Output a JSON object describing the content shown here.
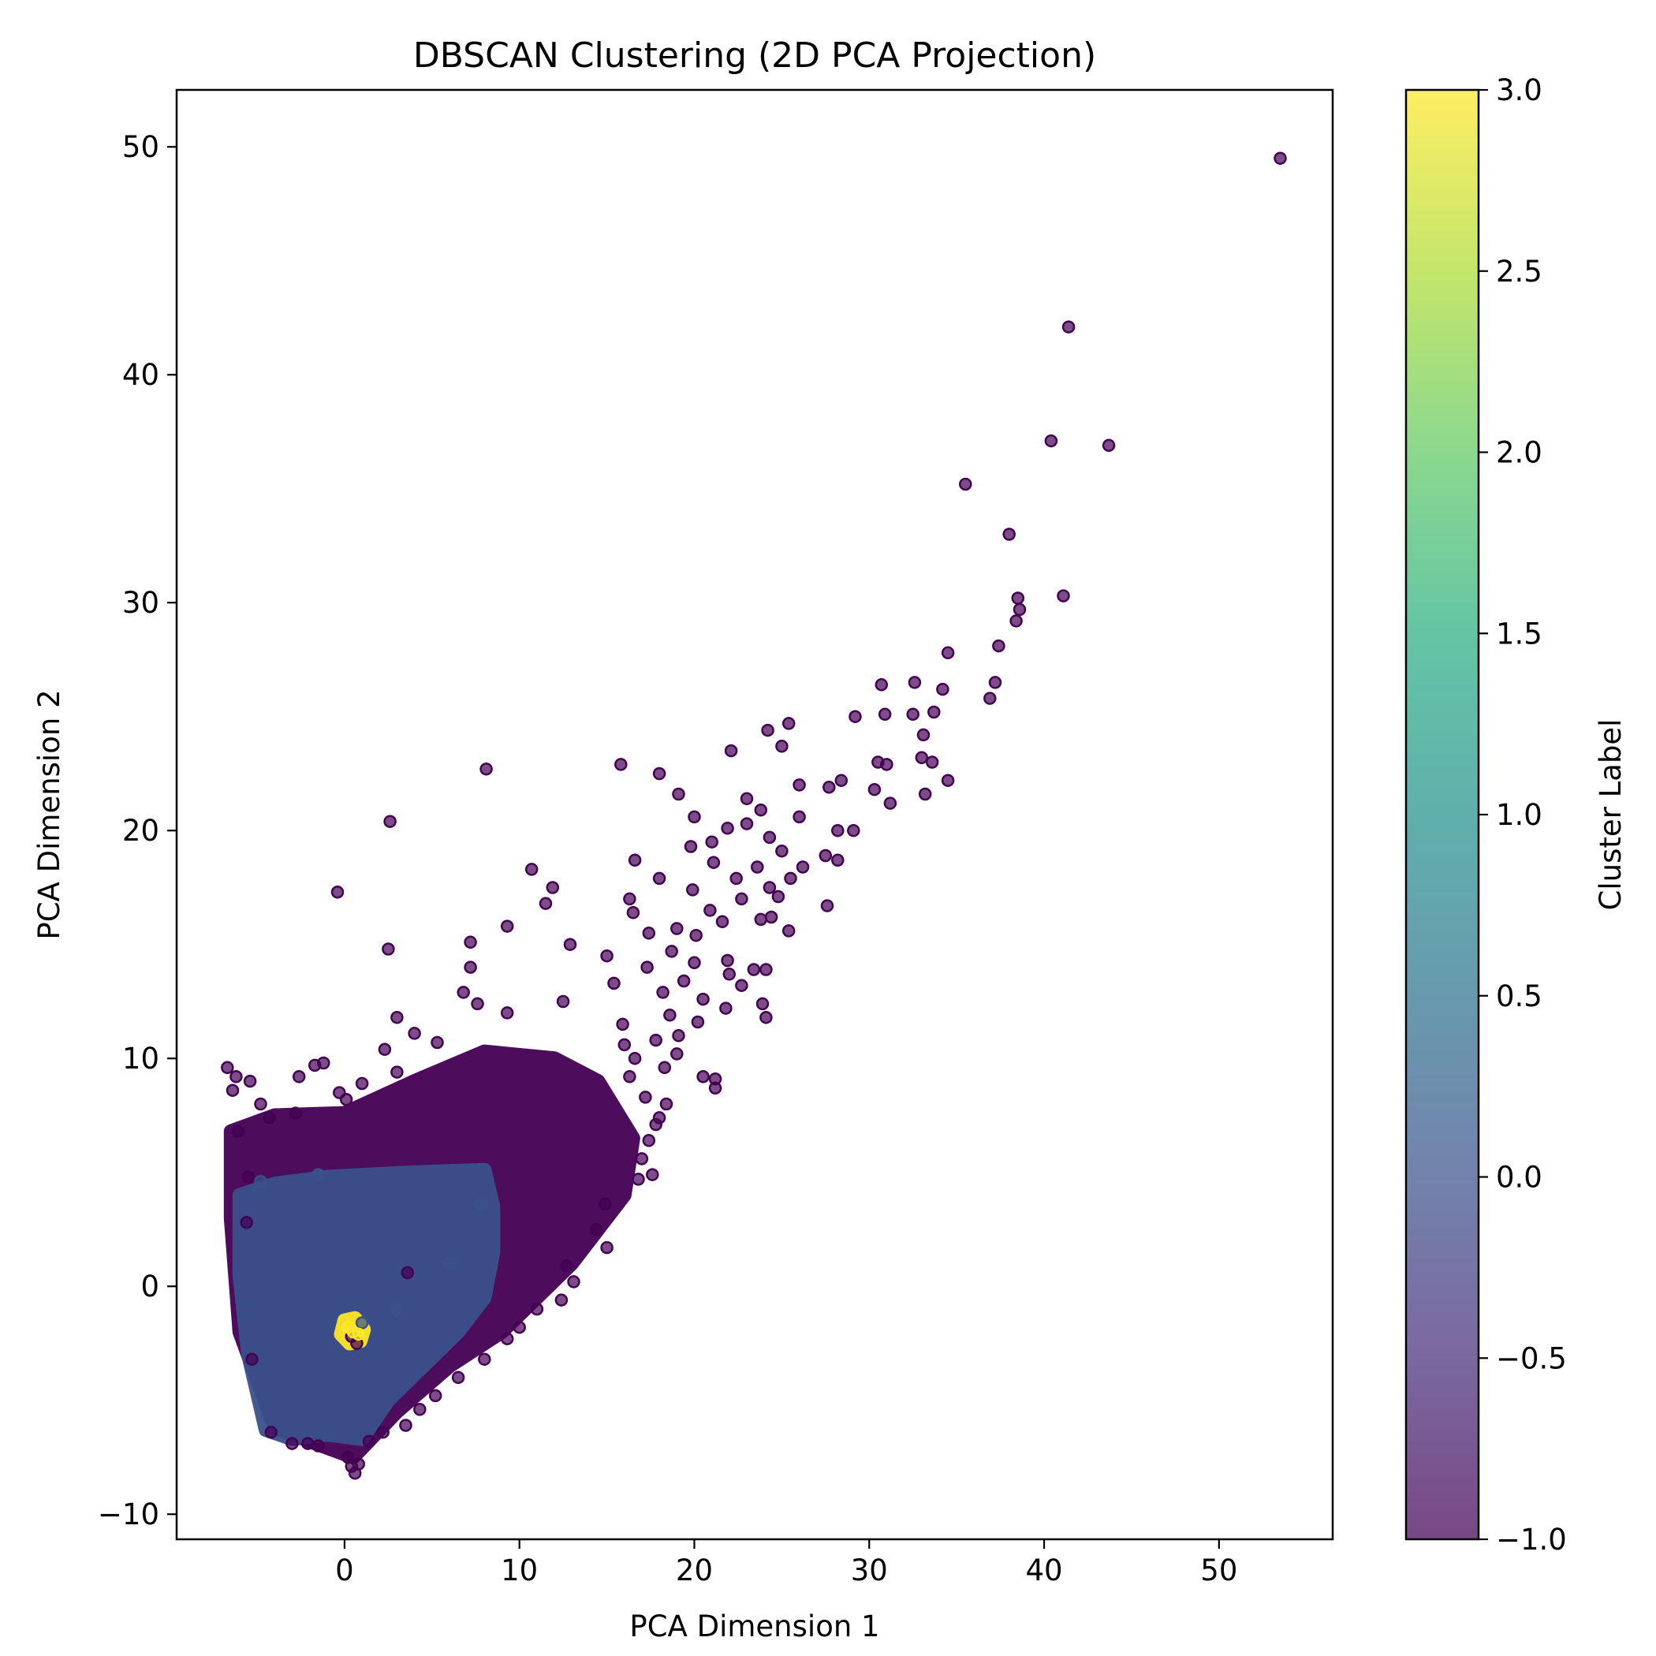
{
  "chart_data": {
    "type": "scatter",
    "title": "DBSCAN Clustering (2D PCA Projection)",
    "xlabel": "PCA Dimension 1",
    "ylabel": "PCA Dimension 2",
    "xlim": [
      -9.6,
      56.5
    ],
    "ylim": [
      -11.1,
      52.5
    ],
    "xticks": [
      0,
      10,
      20,
      30,
      40,
      50
    ],
    "yticks": [
      -10,
      0,
      10,
      20,
      30,
      40,
      50
    ],
    "grid": false,
    "colormap": "viridis",
    "marker_alpha": 0.7,
    "colors": {
      "noise": "#440154",
      "cluster_0": "#3b518b",
      "cluster_3": "#fde725"
    },
    "colorbar": {
      "label": "Cluster Label",
      "range": [
        -1.0,
        3.0
      ],
      "ticks": [
        "-1.0",
        "-0.5",
        "0.0",
        "0.5",
        "1.0",
        "1.5",
        "2.0",
        "2.5",
        "3.0"
      ],
      "tick_values": [
        -1.0,
        -0.5,
        0.0,
        0.5,
        1.0,
        1.5,
        2.0,
        2.5,
        3.0
      ]
    },
    "dense_regions": [
      {
        "name": "noise (-1) core",
        "label": -1,
        "polygon": [
          [
            -6.5,
            6.8
          ],
          [
            -4,
            7.5
          ],
          [
            0,
            7.6
          ],
          [
            4,
            9
          ],
          [
            8,
            10.3
          ],
          [
            12,
            10
          ],
          [
            14.5,
            9
          ],
          [
            16.5,
            6.5
          ],
          [
            16,
            4
          ],
          [
            13,
            1
          ],
          [
            9,
            -2
          ],
          [
            6,
            -3.5
          ],
          [
            3,
            -5.5
          ],
          [
            0.5,
            -7.5
          ],
          [
            -2,
            -6.8
          ],
          [
            -4,
            -6.2
          ],
          [
            -6,
            -2
          ],
          [
            -6.5,
            3
          ]
        ]
      },
      {
        "name": "cluster 0 core",
        "label": 0,
        "polygon": [
          [
            -6,
            4
          ],
          [
            -4,
            4.5
          ],
          [
            -1,
            4.8
          ],
          [
            4,
            5
          ],
          [
            8,
            5.1
          ],
          [
            8.5,
            3.5
          ],
          [
            8.5,
            1.5
          ],
          [
            8,
            -0.5
          ],
          [
            6.5,
            -2
          ],
          [
            4.5,
            -3.5
          ],
          [
            2.5,
            -5
          ],
          [
            1,
            -6.7
          ],
          [
            -1,
            -6.5
          ],
          [
            -3,
            -6.7
          ],
          [
            -4.5,
            -6.3
          ],
          [
            -5.5,
            -3
          ],
          [
            -6,
            0.5
          ]
        ]
      },
      {
        "name": "cluster 3 core",
        "label": 3,
        "polygon": [
          [
            0,
            -1.5
          ],
          [
            0.6,
            -1.4
          ],
          [
            1.1,
            -1.9
          ],
          [
            0.9,
            -2.4
          ],
          [
            0.3,
            -2.5
          ],
          [
            -0.2,
            -2.1
          ]
        ]
      }
    ],
    "points": [
      {
        "x": 53.5,
        "y": 49.5,
        "label": -1
      },
      {
        "x": 41.4,
        "y": 42.1,
        "label": -1
      },
      {
        "x": 40.4,
        "y": 37.1,
        "label": -1
      },
      {
        "x": 43.7,
        "y": 36.9,
        "label": -1
      },
      {
        "x": 35.5,
        "y": 35.2,
        "label": -1
      },
      {
        "x": 38.0,
        "y": 33.0,
        "label": -1
      },
      {
        "x": 41.1,
        "y": 30.3,
        "label": -1
      },
      {
        "x": 38.5,
        "y": 30.2,
        "label": -1
      },
      {
        "x": 38.6,
        "y": 29.7,
        "label": -1
      },
      {
        "x": 38.4,
        "y": 29.2,
        "label": -1
      },
      {
        "x": 37.4,
        "y": 28.1,
        "label": -1
      },
      {
        "x": 34.5,
        "y": 27.8,
        "label": -1
      },
      {
        "x": 30.7,
        "y": 26.4,
        "label": -1
      },
      {
        "x": 32.6,
        "y": 26.5,
        "label": -1
      },
      {
        "x": 37.2,
        "y": 26.5,
        "label": -1
      },
      {
        "x": 34.2,
        "y": 26.2,
        "label": -1
      },
      {
        "x": 36.9,
        "y": 25.8,
        "label": -1
      },
      {
        "x": 33.7,
        "y": 25.2,
        "label": -1
      },
      {
        "x": 32.5,
        "y": 25.1,
        "label": -1
      },
      {
        "x": 30.9,
        "y": 25.1,
        "label": -1
      },
      {
        "x": 29.2,
        "y": 25.0,
        "label": -1
      },
      {
        "x": 25.4,
        "y": 24.7,
        "label": -1
      },
      {
        "x": 24.2,
        "y": 24.4,
        "label": -1
      },
      {
        "x": 33.1,
        "y": 24.2,
        "label": -1
      },
      {
        "x": 25.0,
        "y": 23.7,
        "label": -1
      },
      {
        "x": 22.1,
        "y": 23.5,
        "label": -1
      },
      {
        "x": 33.0,
        "y": 23.2,
        "label": -1
      },
      {
        "x": 30.5,
        "y": 23.0,
        "label": -1
      },
      {
        "x": 31.0,
        "y": 22.9,
        "label": -1
      },
      {
        "x": 33.6,
        "y": 23.0,
        "label": -1
      },
      {
        "x": 15.8,
        "y": 22.9,
        "label": -1
      },
      {
        "x": 8.1,
        "y": 22.7,
        "label": -1
      },
      {
        "x": 18.0,
        "y": 22.5,
        "label": -1
      },
      {
        "x": 34.5,
        "y": 22.2,
        "label": -1
      },
      {
        "x": 28.4,
        "y": 22.2,
        "label": -1
      },
      {
        "x": 30.3,
        "y": 21.8,
        "label": -1
      },
      {
        "x": 26.0,
        "y": 22.0,
        "label": -1
      },
      {
        "x": 27.7,
        "y": 21.9,
        "label": -1
      },
      {
        "x": 33.2,
        "y": 21.6,
        "label": -1
      },
      {
        "x": 19.1,
        "y": 21.6,
        "label": -1
      },
      {
        "x": 23.0,
        "y": 21.4,
        "label": -1
      },
      {
        "x": 31.2,
        "y": 21.2,
        "label": -1
      },
      {
        "x": 23.8,
        "y": 20.9,
        "label": -1
      },
      {
        "x": 20.0,
        "y": 20.6,
        "label": -1
      },
      {
        "x": 26.0,
        "y": 20.6,
        "label": -1
      },
      {
        "x": 2.6,
        "y": 20.4,
        "label": -1
      },
      {
        "x": 23.0,
        "y": 20.3,
        "label": -1
      },
      {
        "x": 21.9,
        "y": 20.1,
        "label": -1
      },
      {
        "x": 28.2,
        "y": 20.0,
        "label": -1
      },
      {
        "x": 29.1,
        "y": 20.0,
        "label": -1
      },
      {
        "x": 24.3,
        "y": 19.7,
        "label": -1
      },
      {
        "x": 21.0,
        "y": 19.5,
        "label": -1
      },
      {
        "x": 19.8,
        "y": 19.3,
        "label": -1
      },
      {
        "x": 25.0,
        "y": 19.1,
        "label": -1
      },
      {
        "x": 27.5,
        "y": 18.9,
        "label": -1
      },
      {
        "x": 28.2,
        "y": 18.7,
        "label": -1
      },
      {
        "x": 16.6,
        "y": 18.7,
        "label": -1
      },
      {
        "x": 21.1,
        "y": 18.6,
        "label": -1
      },
      {
        "x": 23.6,
        "y": 18.4,
        "label": -1
      },
      {
        "x": 10.7,
        "y": 18.3,
        "label": -1
      },
      {
        "x": 26.2,
        "y": 18.4,
        "label": -1
      },
      {
        "x": 22.4,
        "y": 17.9,
        "label": -1
      },
      {
        "x": 25.5,
        "y": 17.9,
        "label": -1
      },
      {
        "x": 18.0,
        "y": 17.9,
        "label": -1
      },
      {
        "x": 24.3,
        "y": 17.5,
        "label": -1
      },
      {
        "x": 11.9,
        "y": 17.5,
        "label": -1
      },
      {
        "x": -0.4,
        "y": 17.3,
        "label": -1
      },
      {
        "x": 19.9,
        "y": 17.4,
        "label": -1
      },
      {
        "x": 24.8,
        "y": 17.1,
        "label": -1
      },
      {
        "x": 16.3,
        "y": 17.0,
        "label": -1
      },
      {
        "x": 22.7,
        "y": 17.0,
        "label": -1
      },
      {
        "x": 11.5,
        "y": 16.8,
        "label": -1
      },
      {
        "x": 20.9,
        "y": 16.5,
        "label": -1
      },
      {
        "x": 27.6,
        "y": 16.7,
        "label": -1
      },
      {
        "x": 16.5,
        "y": 16.4,
        "label": -1
      },
      {
        "x": 24.4,
        "y": 16.2,
        "label": -1
      },
      {
        "x": 23.8,
        "y": 16.1,
        "label": -1
      },
      {
        "x": 21.6,
        "y": 16.0,
        "label": -1
      },
      {
        "x": 9.3,
        "y": 15.8,
        "label": -1
      },
      {
        "x": 19.0,
        "y": 15.7,
        "label": -1
      },
      {
        "x": 25.4,
        "y": 15.6,
        "label": -1
      },
      {
        "x": 17.4,
        "y": 15.5,
        "label": -1
      },
      {
        "x": 20.1,
        "y": 15.4,
        "label": -1
      },
      {
        "x": 7.2,
        "y": 15.1,
        "label": -1
      },
      {
        "x": 12.9,
        "y": 15.0,
        "label": -1
      },
      {
        "x": 2.5,
        "y": 14.8,
        "label": -1
      },
      {
        "x": 18.7,
        "y": 14.7,
        "label": -1
      },
      {
        "x": 15.0,
        "y": 14.5,
        "label": -1
      },
      {
        "x": 21.9,
        "y": 14.3,
        "label": -1
      },
      {
        "x": 20.0,
        "y": 14.2,
        "label": -1
      },
      {
        "x": 17.3,
        "y": 14.0,
        "label": -1
      },
      {
        "x": 23.4,
        "y": 13.9,
        "label": -1
      },
      {
        "x": 24.1,
        "y": 13.9,
        "label": -1
      },
      {
        "x": 7.2,
        "y": 14.0,
        "label": -1
      },
      {
        "x": 22.0,
        "y": 13.7,
        "label": -1
      },
      {
        "x": 19.4,
        "y": 13.4,
        "label": -1
      },
      {
        "x": 15.4,
        "y": 13.3,
        "label": -1
      },
      {
        "x": 22.7,
        "y": 13.2,
        "label": -1
      },
      {
        "x": 18.2,
        "y": 12.9,
        "label": -1
      },
      {
        "x": 6.8,
        "y": 12.9,
        "label": -1
      },
      {
        "x": 20.5,
        "y": 12.6,
        "label": -1
      },
      {
        "x": 12.5,
        "y": 12.5,
        "label": -1
      },
      {
        "x": 23.9,
        "y": 12.4,
        "label": -1
      },
      {
        "x": 7.6,
        "y": 12.4,
        "label": -1
      },
      {
        "x": 21.8,
        "y": 12.2,
        "label": -1
      },
      {
        "x": 9.3,
        "y": 12.0,
        "label": -1
      },
      {
        "x": 18.6,
        "y": 11.9,
        "label": -1
      },
      {
        "x": 3.0,
        "y": 11.8,
        "label": -1
      },
      {
        "x": 24.1,
        "y": 11.8,
        "label": -1
      },
      {
        "x": 20.2,
        "y": 11.6,
        "label": -1
      },
      {
        "x": 15.9,
        "y": 11.5,
        "label": -1
      },
      {
        "x": 4.0,
        "y": 11.1,
        "label": -1
      },
      {
        "x": 19.1,
        "y": 11.0,
        "label": -1
      },
      {
        "x": 17.8,
        "y": 10.8,
        "label": -1
      },
      {
        "x": 5.3,
        "y": 10.7,
        "label": -1
      },
      {
        "x": 16.0,
        "y": 10.6,
        "label": -1
      },
      {
        "x": 2.3,
        "y": 10.4,
        "label": -1
      },
      {
        "x": 19.0,
        "y": 10.2,
        "label": -1
      },
      {
        "x": 16.6,
        "y": 10.0,
        "label": -1
      },
      {
        "x": -6.7,
        "y": 9.6,
        "label": -1
      },
      {
        "x": -1.7,
        "y": 9.7,
        "label": -1
      },
      {
        "x": -1.2,
        "y": 9.8,
        "label": -1
      },
      {
        "x": 18.3,
        "y": 9.6,
        "label": -1
      },
      {
        "x": 3.0,
        "y": 9.4,
        "label": -1
      },
      {
        "x": 16.3,
        "y": 9.2,
        "label": -1
      },
      {
        "x": -6.2,
        "y": 9.2,
        "label": -1
      },
      {
        "x": -2.6,
        "y": 9.2,
        "label": -1
      },
      {
        "x": 20.5,
        "y": 9.2,
        "label": -1
      },
      {
        "x": 21.2,
        "y": 9.1,
        "label": -1
      },
      {
        "x": -5.4,
        "y": 9.0,
        "label": -1
      },
      {
        "x": 1.0,
        "y": 8.9,
        "label": -1
      },
      {
        "x": 21.2,
        "y": 8.7,
        "label": -1
      },
      {
        "x": -6.4,
        "y": 8.6,
        "label": -1
      },
      {
        "x": -0.3,
        "y": 8.5,
        "label": -1
      },
      {
        "x": 17.2,
        "y": 8.3,
        "label": -1
      },
      {
        "x": 0.1,
        "y": 8.2,
        "label": -1
      },
      {
        "x": 18.4,
        "y": 8.0,
        "label": -1
      },
      {
        "x": -4.8,
        "y": 8.0,
        "label": -1
      },
      {
        "x": -2.8,
        "y": 7.6,
        "label": -1
      },
      {
        "x": 18.0,
        "y": 7.4,
        "label": -1
      },
      {
        "x": -4.3,
        "y": 7.4,
        "label": -1
      },
      {
        "x": 17.8,
        "y": 7.1,
        "label": -1
      },
      {
        "x": 17.4,
        "y": 6.4,
        "label": -1
      },
      {
        "x": 17.0,
        "y": 5.6,
        "label": -1
      },
      {
        "x": 16.8,
        "y": 4.7,
        "label": -1
      },
      {
        "x": 17.6,
        "y": 4.9,
        "label": -1
      },
      {
        "x": 14.9,
        "y": 3.6,
        "label": -1
      },
      {
        "x": 14.4,
        "y": 2.5,
        "label": -1
      },
      {
        "x": 15.0,
        "y": 1.7,
        "label": -1
      },
      {
        "x": 12.7,
        "y": 0.9,
        "label": -1
      },
      {
        "x": 13.1,
        "y": 0.2,
        "label": -1
      },
      {
        "x": 3.6,
        "y": 0.6,
        "label": -1
      },
      {
        "x": 12.4,
        "y": -0.6,
        "label": -1
      },
      {
        "x": 11.0,
        "y": -1.0,
        "label": -1
      },
      {
        "x": 10.0,
        "y": -1.8,
        "label": -1
      },
      {
        "x": 9.3,
        "y": -2.3,
        "label": -1
      },
      {
        "x": 8.0,
        "y": -3.2,
        "label": -1
      },
      {
        "x": 6.5,
        "y": -4.0,
        "label": -1
      },
      {
        "x": 5.2,
        "y": -4.8,
        "label": -1
      },
      {
        "x": 4.3,
        "y": -5.4,
        "label": -1
      },
      {
        "x": 3.5,
        "y": -6.1,
        "label": -1
      },
      {
        "x": 2.2,
        "y": -6.4,
        "label": -1
      },
      {
        "x": 1.4,
        "y": -6.8,
        "label": -1
      },
      {
        "x": 0.2,
        "y": -7.5,
        "label": -1
      },
      {
        "x": 0.8,
        "y": -7.8,
        "label": -1
      },
      {
        "x": 0.6,
        "y": -8.2,
        "label": -1
      },
      {
        "x": 0.4,
        "y": -7.9,
        "label": -1
      },
      {
        "x": -1.5,
        "y": -7.0,
        "label": -1
      },
      {
        "x": -2.1,
        "y": -6.9,
        "label": -1
      },
      {
        "x": -3.0,
        "y": -6.9,
        "label": -1
      },
      {
        "x": -4.2,
        "y": -6.4,
        "label": -1
      },
      {
        "x": -5.3,
        "y": -3.2,
        "label": -1
      },
      {
        "x": -5.6,
        "y": 2.8,
        "label": -1
      },
      {
        "x": -5.5,
        "y": 4.8,
        "label": -1
      },
      {
        "x": -6.1,
        "y": 6.8,
        "label": -1
      },
      {
        "x": 0.4,
        "y": -2.2,
        "label": -1
      },
      {
        "x": 0.7,
        "y": -2.5,
        "label": -1
      },
      {
        "x": 1.0,
        "y": -1.6,
        "label": 0
      },
      {
        "x": 3.0,
        "y": -1.0,
        "label": 0
      },
      {
        "x": 6.0,
        "y": 1.0,
        "label": 0
      },
      {
        "x": 7.8,
        "y": 3.6,
        "label": 0
      },
      {
        "x": -4.8,
        "y": 4.6,
        "label": 0
      },
      {
        "x": -1.5,
        "y": 4.9,
        "label": 0
      },
      {
        "x": 0.5,
        "y": -2.0,
        "label": 3
      },
      {
        "x": 0.2,
        "y": -1.8,
        "label": 3
      },
      {
        "x": 0.8,
        "y": -2.1,
        "label": 3
      }
    ]
  }
}
